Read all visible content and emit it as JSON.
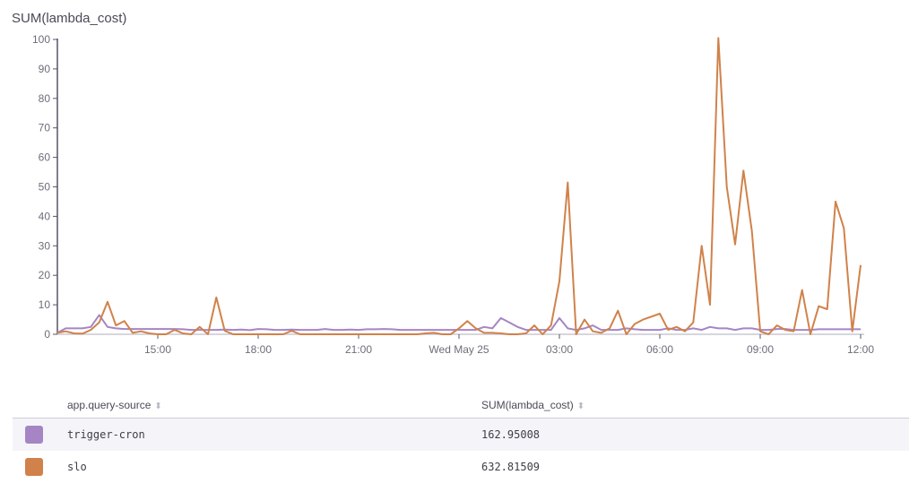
{
  "chart_data": {
    "type": "line",
    "title": "SUM(lambda_cost)",
    "ylim": [
      0,
      100
    ],
    "yticks": [
      "0",
      "10",
      "20",
      "30",
      "40",
      "50",
      "60",
      "70",
      "80",
      "90",
      "100"
    ],
    "xticks": [
      "15:00",
      "18:00",
      "21:00",
      "Wed May 25",
      "03:00",
      "06:00",
      "09:00",
      "12:00"
    ],
    "grid": false,
    "x": [
      "12:00",
      "12:15",
      "12:30",
      "12:45",
      "13:00",
      "13:15",
      "13:30",
      "13:45",
      "14:00",
      "14:15",
      "14:30",
      "14:45",
      "15:00",
      "15:15",
      "15:30",
      "15:45",
      "16:00",
      "16:15",
      "16:30",
      "16:45",
      "17:00",
      "17:15",
      "17:30",
      "17:45",
      "18:00",
      "18:15",
      "18:30",
      "18:45",
      "19:00",
      "19:15",
      "19:30",
      "19:45",
      "20:00",
      "20:15",
      "20:30",
      "20:45",
      "21:00",
      "21:15",
      "21:30",
      "21:45",
      "22:00",
      "22:15",
      "22:30",
      "22:45",
      "23:00",
      "23:15",
      "23:30",
      "23:45",
      "00:00",
      "00:15",
      "00:30",
      "00:45",
      "01:00",
      "01:15",
      "01:30",
      "01:45",
      "02:00",
      "02:15",
      "02:30",
      "02:45",
      "03:00",
      "03:15",
      "03:30",
      "03:45",
      "04:00",
      "04:15",
      "04:30",
      "04:45",
      "05:00",
      "05:15",
      "05:30",
      "05:45",
      "06:00",
      "06:15",
      "06:30",
      "06:45",
      "07:00",
      "07:15",
      "07:30",
      "07:45",
      "08:00",
      "08:15",
      "08:30",
      "08:45",
      "09:00",
      "09:15",
      "09:30",
      "09:45",
      "10:00",
      "10:15",
      "10:30",
      "10:45",
      "11:00",
      "11:15",
      "11:30",
      "11:45",
      "12:00"
    ],
    "series": [
      {
        "name": "trigger-cron",
        "color": "#a585c4",
        "values": [
          0.5,
          2,
          2,
          2,
          2.5,
          6.5,
          2.5,
          2,
          1.8,
          1.8,
          1.8,
          1.8,
          1.8,
          1.8,
          1.8,
          1.7,
          1.5,
          1.5,
          1.5,
          1.5,
          1.6,
          1.5,
          1.6,
          1.4,
          1.8,
          1.7,
          1.5,
          1.5,
          1.6,
          1.5,
          1.5,
          1.5,
          1.8,
          1.5,
          1.5,
          1.6,
          1.5,
          1.7,
          1.7,
          1.8,
          1.7,
          1.5,
          1.5,
          1.5,
          1.5,
          1.5,
          1.5,
          1.5,
          1.5,
          1.5,
          1.5,
          2.5,
          2,
          5.5,
          4,
          2.5,
          1.5,
          1.5,
          1.5,
          1.5,
          5.5,
          2,
          1.5,
          2,
          3,
          1.5,
          1.5,
          1.5,
          2,
          1.7,
          1.5,
          1.5,
          1.5,
          2,
          1.5,
          1.5,
          2,
          1.5,
          2.5,
          2,
          2,
          1.5,
          2,
          2,
          1.5,
          1.5,
          1.8,
          1.8,
          1.5,
          1.5,
          1.5,
          1.7,
          1.7,
          1.7,
          1.7,
          1.7,
          1.7
        ]
      },
      {
        "name": "slo",
        "color": "#d0824a",
        "values": [
          0.5,
          1,
          0.3,
          0.2,
          1.5,
          4,
          11,
          3,
          4.5,
          0.5,
          1,
          0.3,
          0,
          0,
          1.5,
          0.3,
          0,
          2.5,
          0,
          12.5,
          1.2,
          0,
          0,
          0,
          0,
          0,
          0,
          0,
          1.2,
          0,
          0,
          0,
          0,
          0,
          0,
          0,
          0,
          0,
          0,
          0,
          0,
          0,
          0,
          0,
          0.3,
          0.5,
          0,
          0,
          2,
          4.5,
          2,
          0.5,
          0.5,
          0.3,
          0,
          0,
          0.3,
          3,
          0,
          3,
          18,
          51.5,
          0,
          5,
          1,
          0.5,
          2,
          8,
          0,
          3.5,
          5,
          6,
          7,
          1.5,
          2.5,
          1,
          4,
          30,
          10,
          100.5,
          50,
          30.5,
          55.5,
          35,
          1,
          0,
          3,
          1.5,
          1,
          15,
          0,
          9.5,
          8.5,
          45,
          36,
          1,
          23.5
        ]
      }
    ]
  },
  "table": {
    "headers": [
      "app.query-source",
      "SUM(lambda_cost)"
    ],
    "sort_icon": "sort-updown-icon",
    "rows": [
      {
        "name": "trigger-cron",
        "value": "162.95008",
        "color": "#a585c4"
      },
      {
        "name": "slo",
        "value": "632.81509",
        "color": "#d0824a"
      }
    ]
  }
}
